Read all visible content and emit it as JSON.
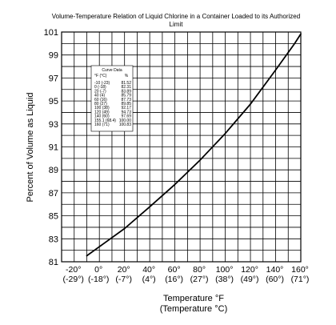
{
  "chart_data": {
    "type": "line",
    "title": "Volume-Temperature Relation of Liquid Chlorine in a Container Loaded to its Authorized Limit",
    "xlabel": "Temperature °F",
    "xlabel2": "(Temperature °C)",
    "ylabel": "Percent of Volume as Liquid",
    "xlim": [
      -30,
      160
    ],
    "ylim": [
      81,
      101
    ],
    "grid": true,
    "y_ticks": [
      "81",
      "83",
      "85",
      "87",
      "89",
      "91",
      "93",
      "95",
      "97",
      "99",
      "101"
    ],
    "x_ticks": [
      {
        "value": -20,
        "f": "-20°",
        "c": "(-29°)"
      },
      {
        "value": 0,
        "f": "0°",
        "c": "(-18°)"
      },
      {
        "value": 20,
        "f": "20°",
        "c": "(-7°)"
      },
      {
        "value": 40,
        "f": "40°",
        "c": "(4°)"
      },
      {
        "value": 60,
        "f": "60°",
        "c": "(16°)"
      },
      {
        "value": 80,
        "f": "80°",
        "c": "(27°)"
      },
      {
        "value": 100,
        "f": "100°",
        "c": "(38°)"
      },
      {
        "value": 120,
        "f": "120°",
        "c": "(49°)"
      },
      {
        "value": 140,
        "f": "140°",
        "c": "(60°)"
      },
      {
        "value": 160,
        "f": "160°",
        "c": "(71°)"
      }
    ],
    "series": [
      {
        "x": [
          -10,
          0,
          20,
          40,
          60,
          80,
          100,
          120,
          140,
          155.1,
          160
        ],
        "y": [
          81.52,
          82.31,
          83.89,
          85.79,
          87.73,
          89.85,
          92.17,
          94.73,
          97.69,
          100.0,
          100.83
        ]
      }
    ],
    "legend": {
      "title": "Curve Data",
      "headers": [
        "°F (°C)",
        "%"
      ],
      "rows": [
        [
          "-10 (-23)",
          "81.52"
        ],
        [
          "0 (-18)",
          "82.31"
        ],
        [
          "20 (-7)",
          "83.89"
        ],
        [
          "40 (4)",
          "85.79"
        ],
        [
          "60 (16)",
          "87.73"
        ],
        [
          "80 (27)",
          "89.85"
        ],
        [
          "100 (38)",
          "92.17"
        ],
        [
          "120 (49)",
          "94.73"
        ],
        [
          "140 (60)",
          "97.69"
        ],
        [
          "155.1 (68.4)",
          "100.00"
        ],
        [
          "160 (71)",
          "100.83"
        ]
      ]
    }
  }
}
